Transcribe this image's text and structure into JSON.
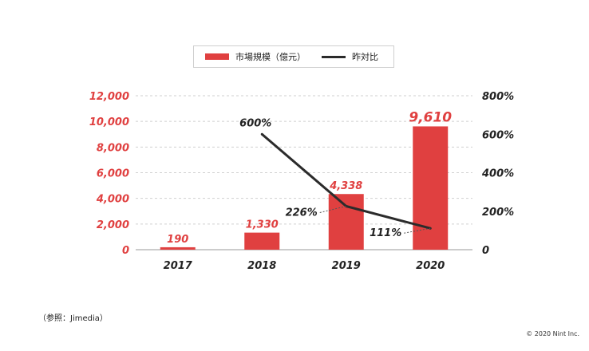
{
  "chart_data": {
    "type": "bar",
    "categories": [
      "2017",
      "2018",
      "2019",
      "2020"
    ],
    "series": [
      {
        "name": "市場規模（億元）",
        "kind": "bar",
        "axis": "left",
        "values": [
          190,
          1330,
          4338,
          9610
        ],
        "labels": [
          "190",
          "1,330",
          "4,338",
          "9,610"
        ],
        "color": "#e04040"
      },
      {
        "name": "昨対比",
        "kind": "line",
        "axis": "right",
        "values": [
          null,
          600,
          226,
          111
        ],
        "labels": [
          "",
          "600%",
          "226%",
          "111%"
        ],
        "color": "#2b2b2b"
      }
    ],
    "y_left": {
      "range": [
        0,
        12000
      ],
      "ticks": [
        "0",
        "2,000",
        "4,000",
        "6,000",
        "8,000",
        "10,000",
        "12,000"
      ],
      "color": "#e04040"
    },
    "y_right": {
      "range": [
        0,
        800
      ],
      "ticks": [
        "0",
        "200%",
        "400%",
        "600%",
        "800%"
      ],
      "color": "#222222"
    },
    "grid": true,
    "legend": "top"
  },
  "source_note": "（参照：Jimedia）",
  "copyright": "© 2020 Nint Inc."
}
